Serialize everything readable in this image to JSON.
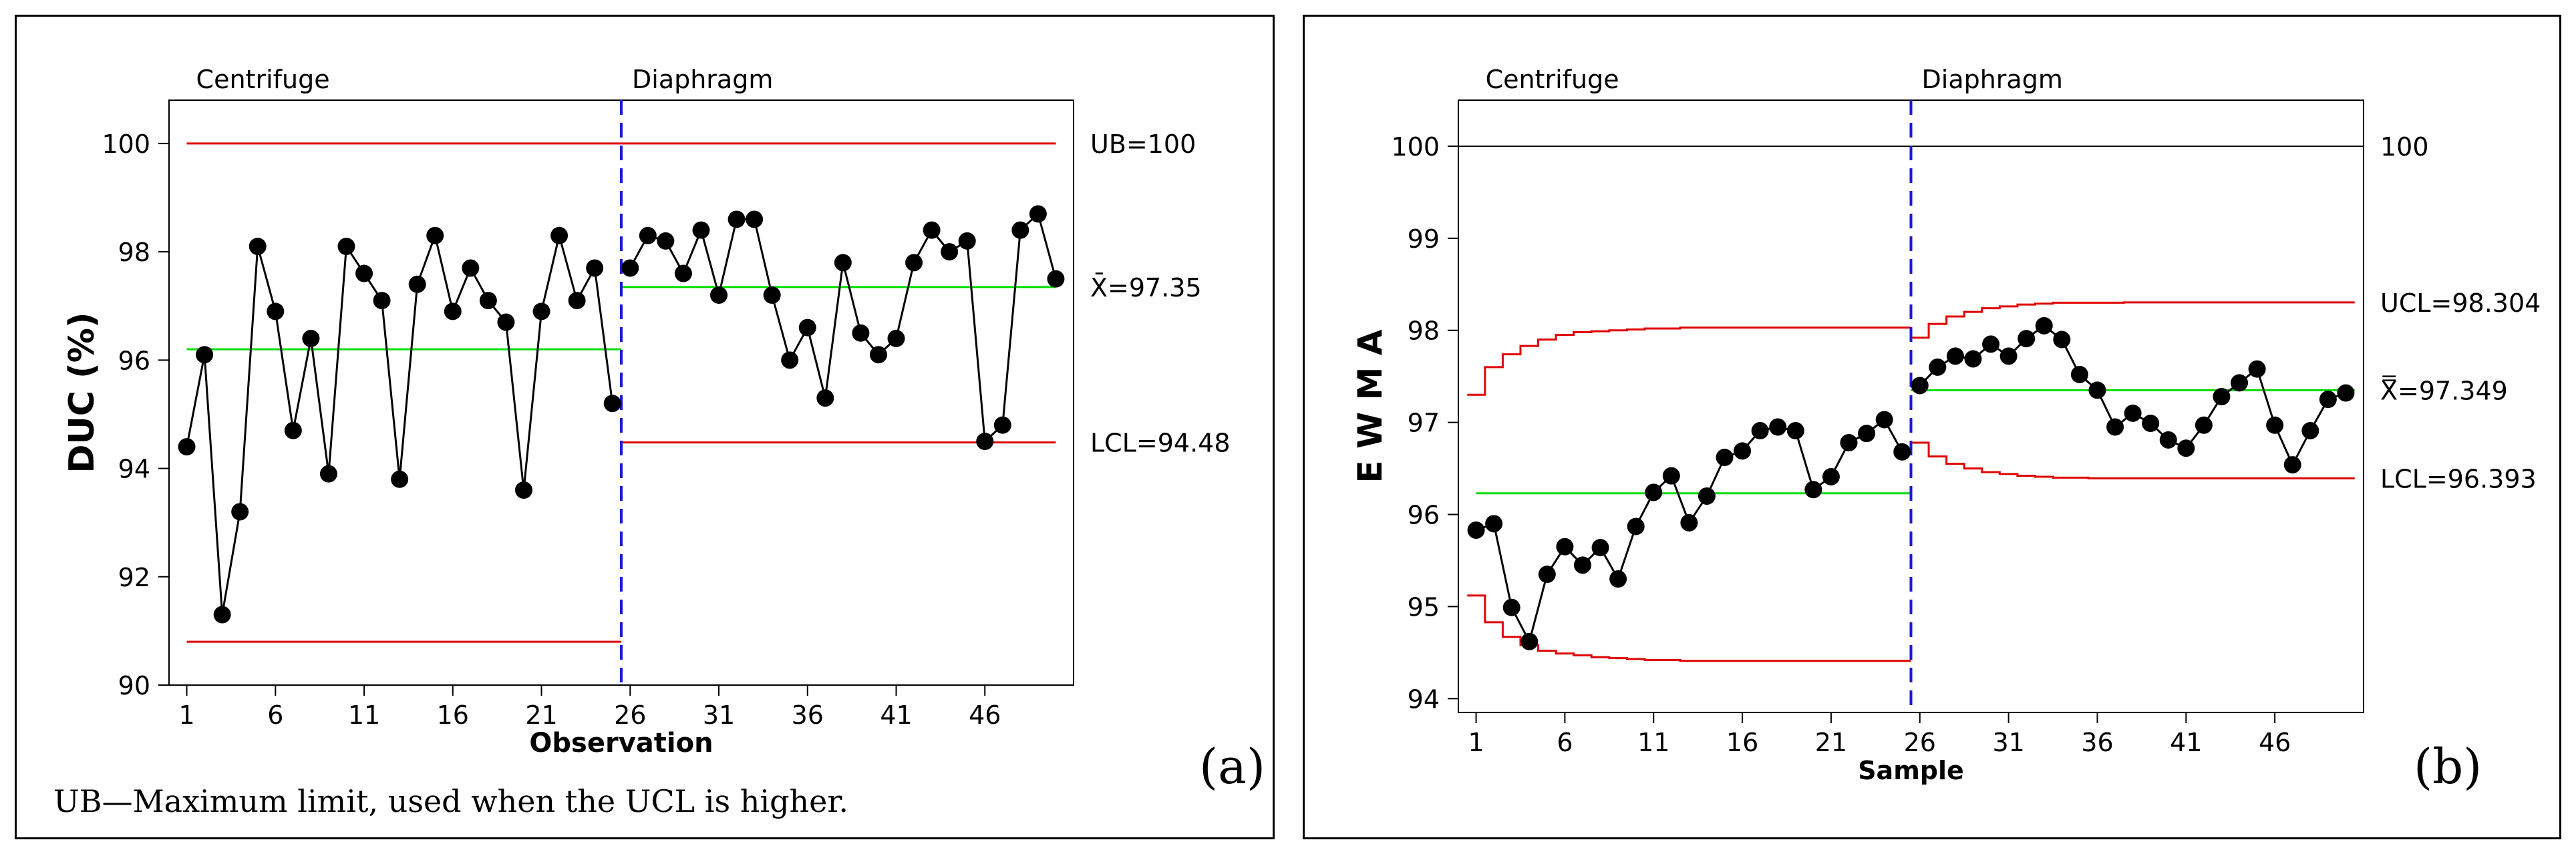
{
  "chart_data": [
    {
      "panel": "(a)",
      "type": "line",
      "chart_kind": "individuals control chart",
      "xlabel": "Observation",
      "ylabel": "DUC (%)",
      "x_tick_labels": [
        "1",
        "6",
        "11",
        "16",
        "21",
        "26",
        "31",
        "36",
        "41",
        "46"
      ],
      "xlim": [
        0,
        51
      ],
      "ylim": [
        90,
        100.8
      ],
      "y_ticks": [
        90,
        92,
        94,
        96,
        98,
        100
      ],
      "phase_boundary": 25.5,
      "phases": [
        {
          "name": "Centrifuge",
          "start": 1,
          "end": 25,
          "center": 96.2,
          "lcl": 90.8
        },
        {
          "name": "Diaphragm",
          "start": 26,
          "end": 50,
          "center": 97.35,
          "lcl": 94.48
        }
      ],
      "upper_bound": 100,
      "line_labels": {
        "ub": "UB=100",
        "center": "X̄=97.35",
        "lcl": "LCL=94.48"
      },
      "footnote": "UB—Maximum limit, used when the UCL is higher.",
      "values": [
        94.4,
        96.1,
        91.3,
        93.2,
        98.1,
        96.9,
        94.7,
        96.4,
        93.9,
        98.1,
        97.6,
        97.1,
        93.8,
        97.4,
        98.3,
        96.9,
        97.7,
        97.1,
        96.7,
        93.6,
        96.9,
        98.3,
        97.1,
        97.7,
        95.2,
        97.7,
        98.3,
        98.2,
        97.6,
        98.4,
        97.2,
        98.6,
        98.6,
        97.2,
        96.0,
        96.6,
        95.3,
        97.8,
        96.5,
        96.1,
        96.4,
        97.8,
        98.4,
        98.0,
        98.2,
        94.5,
        94.8,
        98.4,
        98.7,
        97.5
      ]
    },
    {
      "panel": "(b)",
      "type": "line",
      "chart_kind": "EWMA control chart",
      "xlabel": "Sample",
      "ylabel": "E W M A",
      "x_tick_labels": [
        "1",
        "6",
        "11",
        "16",
        "21",
        "26",
        "31",
        "36",
        "41",
        "46"
      ],
      "xlim": [
        0,
        51
      ],
      "ylim": [
        93.85,
        100.5
      ],
      "y_ticks": [
        94,
        95,
        96,
        97,
        98,
        99,
        100
      ],
      "phase_boundary": 25.5,
      "reference_line": 100,
      "phases": [
        {
          "name": "Centrifuge",
          "start": 1,
          "end": 25,
          "center": 96.23,
          "ucl": [
            97.3,
            97.6,
            97.74,
            97.83,
            97.9,
            97.95,
            97.98,
            97.99,
            98.0,
            98.01,
            98.02,
            98.02,
            98.03,
            98.03,
            98.03,
            98.03,
            98.03,
            98.03,
            98.03,
            98.03,
            98.03,
            98.03,
            98.03,
            98.03,
            98.03
          ],
          "lcl": [
            95.12,
            94.83,
            94.67,
            94.58,
            94.52,
            94.49,
            94.47,
            94.45,
            94.44,
            94.43,
            94.42,
            94.42,
            94.41,
            94.41,
            94.41,
            94.41,
            94.41,
            94.41,
            94.41,
            94.41,
            94.41,
            94.41,
            94.41,
            94.41,
            94.41
          ]
        },
        {
          "name": "Diaphragm",
          "start": 26,
          "end": 50,
          "center": 97.349,
          "ucl": [
            97.92,
            98.07,
            98.15,
            98.2,
            98.24,
            98.26,
            98.28,
            98.29,
            98.3,
            98.3,
            98.3,
            98.3,
            98.304,
            98.304,
            98.304,
            98.304,
            98.304,
            98.304,
            98.304,
            98.304,
            98.304,
            98.304,
            98.304,
            98.304,
            98.304
          ],
          "lcl": [
            96.78,
            96.63,
            96.55,
            96.5,
            96.46,
            96.44,
            96.42,
            96.41,
            96.4,
            96.4,
            96.393,
            96.393,
            96.393,
            96.393,
            96.393,
            96.393,
            96.393,
            96.393,
            96.393,
            96.393,
            96.393,
            96.393,
            96.393,
            96.393,
            96.393
          ]
        }
      ],
      "line_labels": {
        "ref": "100",
        "ucl": "UCL=98.304",
        "center": "X̿=97.349",
        "lcl": "LCL=96.393"
      },
      "values": [
        95.83,
        95.9,
        94.99,
        94.62,
        95.35,
        95.65,
        95.45,
        95.64,
        95.3,
        95.87,
        96.24,
        96.42,
        95.91,
        96.2,
        96.62,
        96.69,
        96.91,
        96.95,
        96.91,
        96.27,
        96.41,
        96.78,
        96.88,
        97.03,
        96.68,
        97.4,
        97.6,
        97.72,
        97.69,
        97.85,
        97.72,
        97.91,
        98.05,
        97.9,
        97.52,
        97.35,
        96.95,
        97.1,
        96.99,
        96.81,
        96.72,
        96.97,
        97.28,
        97.43,
        97.58,
        96.97,
        96.54,
        96.91,
        97.25,
        97.32
      ]
    }
  ]
}
